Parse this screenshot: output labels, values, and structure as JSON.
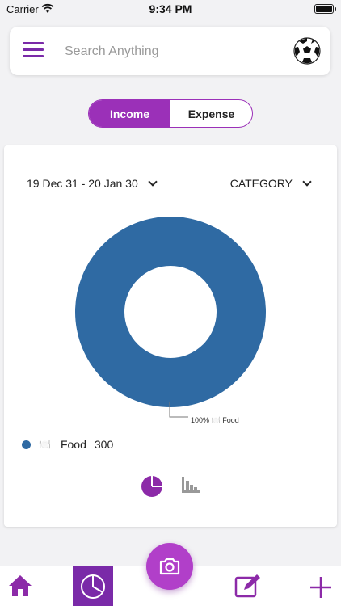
{
  "status_bar": {
    "carrier": "Carrier",
    "time": "9:34 PM"
  },
  "search": {
    "placeholder": "Search Anything"
  },
  "toggle": {
    "income_label": "Income",
    "expense_label": "Expense",
    "active": "Income"
  },
  "filters": {
    "date_range": "19 Dec 31 - 20 Jan 30",
    "group_by": "CATEGORY"
  },
  "chart_data": {
    "type": "pie",
    "categories": [
      "Food"
    ],
    "values": [
      300
    ],
    "callout": "100% 🍽️  Food"
  },
  "legend": [
    {
      "icon": "🍽️",
      "name": "Food",
      "value": "300",
      "color": "#2f6aa3"
    }
  ],
  "colors": {
    "accent": "#9b30b8",
    "series": "#2f6aa3"
  },
  "bottom_nav": [
    "home-icon",
    "pie-chart-icon",
    "camera-icon",
    "edit-icon",
    "plus-icon"
  ]
}
